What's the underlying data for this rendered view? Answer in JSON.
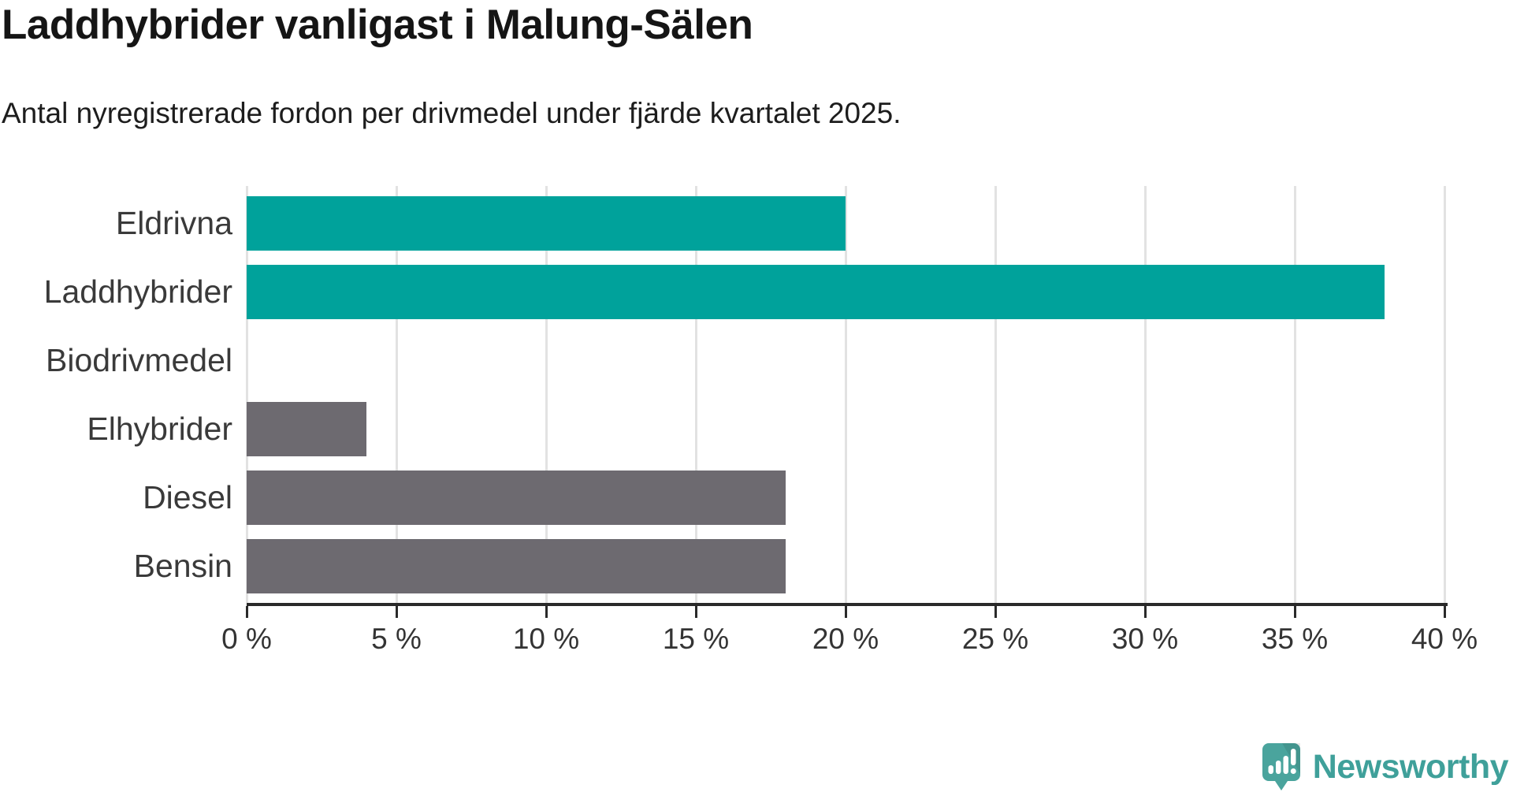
{
  "header": {
    "title": "Laddhybrider vanligast i Malung-Sälen",
    "subtitle": "Antal nyregistrerade fordon per drivmedel under fjärde kvartalet 2025."
  },
  "chart_data": {
    "type": "bar",
    "orientation": "horizontal",
    "title": "Laddhybrider vanligast i Malung-Sälen",
    "subtitle": "Antal nyregistrerade fordon per drivmedel under fjärde kvartalet 2025.",
    "categories": [
      "Eldrivna",
      "Laddhybrider",
      "Biodrivmedel",
      "Elhybrider",
      "Diesel",
      "Bensin"
    ],
    "values": [
      20,
      38,
      0,
      4,
      18,
      18
    ],
    "unit": "%",
    "xlabel": "",
    "ylabel": "",
    "xlim": [
      0,
      40
    ],
    "x_ticks": [
      0,
      5,
      10,
      15,
      20,
      25,
      30,
      35,
      40
    ],
    "x_tick_labels": [
      "0 %",
      "5 %",
      "10 %",
      "15 %",
      "20 %",
      "25 %",
      "30 %",
      "35 %",
      "40 %"
    ],
    "grid": true,
    "legend": false,
    "bar_colors": [
      "#00a29b",
      "#00a29b",
      "#6d6a70",
      "#6d6a70",
      "#6d6a70",
      "#6d6a70"
    ],
    "colors": {
      "highlight": "#00a29b",
      "default": "#6d6a70",
      "gridline": "#e2e2e2",
      "axis": "#2a2a2a"
    }
  },
  "branding": {
    "logo_text": "Newsworthy",
    "logo_color": "#3fa09a",
    "logo_icon": "speech-bubble-bar-chart-exclamation"
  }
}
